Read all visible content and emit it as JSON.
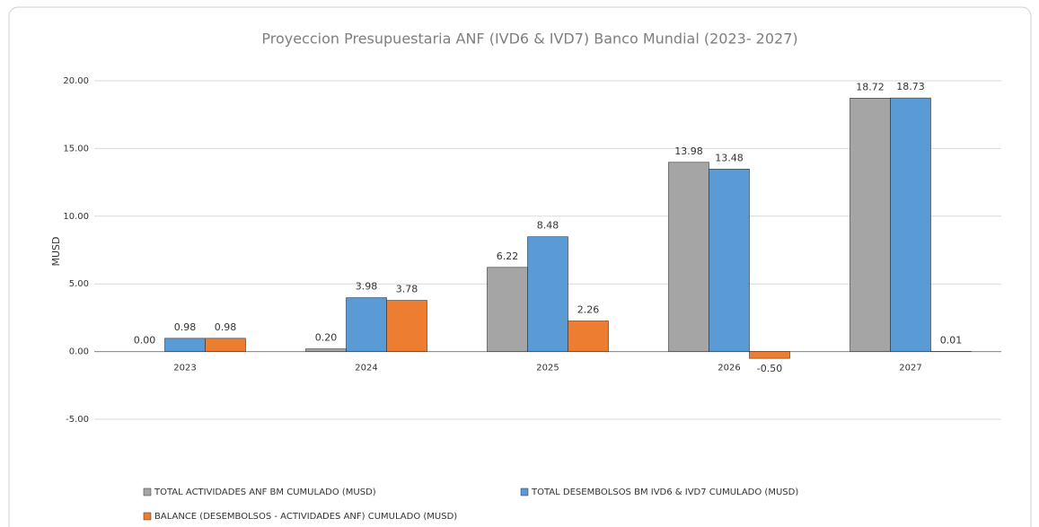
{
  "chart_data": {
    "type": "bar",
    "title": "Proyeccion Presupuestaria ANF (IVD6 & IVD7) Banco Mundial (2023- 2027)",
    "y_label": "MUSD",
    "categories": [
      "2023",
      "2024",
      "2025",
      "2026",
      "2027"
    ],
    "series": [
      {
        "name": "TOTAL ACTIVIDADES ANF BM CUMULADO (MUSD)",
        "color": "#a5a5a5",
        "values": [
          0,
          0.2,
          6.22,
          13.98,
          18.72
        ],
        "value_labels": [
          "0.00",
          "0.20",
          "6.22",
          "13.98",
          "18.72"
        ]
      },
      {
        "name": "TOTAL DESEMBOLSOS BM IVD6 & IVD7 CUMULADO (MUSD)",
        "color": "#5b9bd5",
        "values": [
          0.98,
          3.98,
          8.48,
          13.48,
          18.73
        ],
        "value_labels": [
          "0.98",
          "3.98",
          "8.48",
          "13.48",
          "18.73"
        ]
      },
      {
        "name": "BALANCE (DESEMBOLSOS - ACTIVIDADES ANF) CUMULADO (MUSD)",
        "color": "#ed7d31",
        "values": [
          0.98,
          3.78,
          2.26,
          -0.5,
          0.01
        ],
        "value_labels": [
          "0.98",
          "3.78",
          "2.26",
          "-0.50",
          "0.01"
        ]
      }
    ],
    "ylim": [
      -5,
      20
    ],
    "yticks": [
      {
        "value": -5,
        "label": "-5.00"
      },
      {
        "value": 0,
        "label": "0.00"
      },
      {
        "value": 5,
        "label": "5.00"
      },
      {
        "value": 10,
        "label": "10.00"
      },
      {
        "value": 15,
        "label": "15.00"
      },
      {
        "value": 20,
        "label": "20.00"
      }
    ],
    "grid": true
  }
}
